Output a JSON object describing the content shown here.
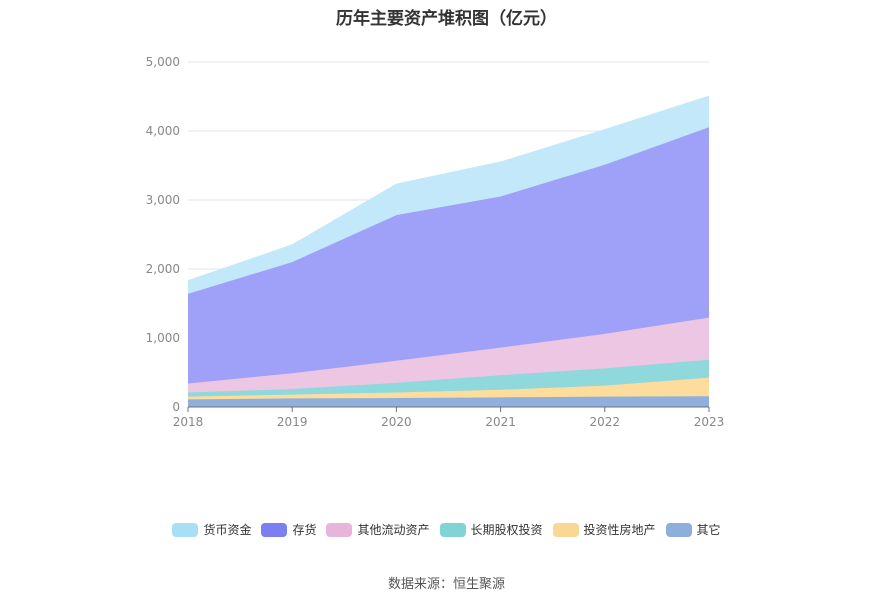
{
  "chart_data": {
    "type": "area",
    "stacked": true,
    "title": "历年主要资产堆积图（亿元）",
    "x": [
      "2018",
      "2019",
      "2020",
      "2021",
      "2022",
      "2023"
    ],
    "ylim": [
      0,
      5000
    ],
    "yticks": [
      "0",
      "1,000",
      "2,000",
      "3,000",
      "4,000",
      "5,000"
    ],
    "grid": true,
    "legend_position": "bottom",
    "series": [
      {
        "name": "其它",
        "color": "#8fb0dd",
        "values": [
          110,
          125,
          130,
          140,
          150,
          155
        ]
      },
      {
        "name": "投资性房地产",
        "color": "#fddc9c",
        "values": [
          40,
          55,
          80,
          110,
          160,
          270
        ]
      },
      {
        "name": "长期股权投资",
        "color": "#8fd8db",
        "values": [
          60,
          80,
          140,
          210,
          250,
          260
        ]
      },
      {
        "name": "其他流动资产",
        "color": "#ecc6e2",
        "values": [
          130,
          230,
          320,
          400,
          500,
          610
        ]
      },
      {
        "name": "存货",
        "color": "#9fa1f9",
        "values": [
          1300,
          1610,
          2110,
          2190,
          2450,
          2760
        ]
      },
      {
        "name": "货币资金",
        "color": "#c2e8fa",
        "values": [
          190,
          250,
          450,
          500,
          510,
          450
        ]
      }
    ],
    "legend": [
      {
        "name": "货币资金",
        "color": "#a9dff5"
      },
      {
        "name": "存货",
        "color": "#7b7ff2"
      },
      {
        "name": "其他流动资产",
        "color": "#e7b5dc"
      },
      {
        "name": "长期股权投资",
        "color": "#80d4d6"
      },
      {
        "name": "投资性房地产",
        "color": "#fbd796"
      },
      {
        "name": "其它",
        "color": "#8eaedc"
      }
    ]
  },
  "source": "数据来源：恒生聚源"
}
